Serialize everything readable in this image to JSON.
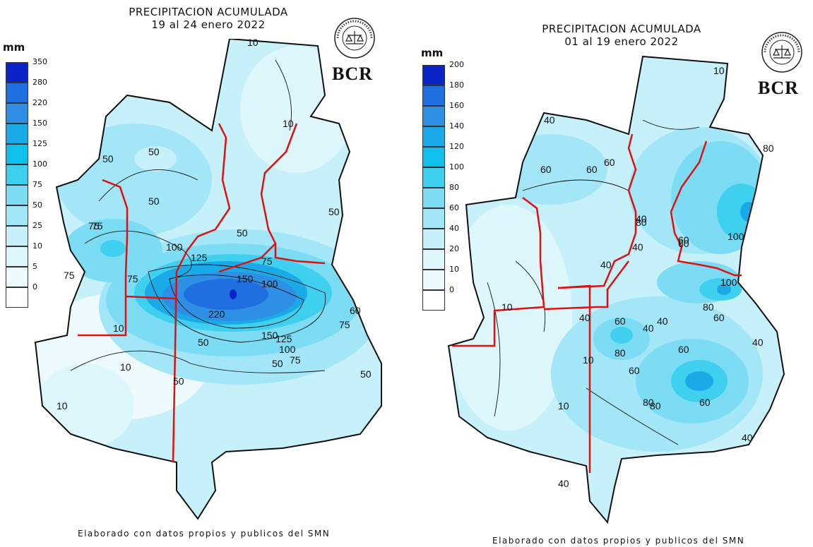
{
  "maps": [
    {
      "title_line1": "PRECIPITACION ACUMULADA",
      "title_line2": "19 al 24 enero 2022",
      "legend_unit": "mm",
      "legend": [
        {
          "label": "350",
          "color": "#0a24c8"
        },
        {
          "label": "280",
          "color": "#1f6fe0"
        },
        {
          "label": "220",
          "color": "#2f8fe4"
        },
        {
          "label": "150",
          "color": "#1aaae8"
        },
        {
          "label": "125",
          "color": "#10c0ec"
        },
        {
          "label": "100",
          "color": "#3fd0f0"
        },
        {
          "label": "75",
          "color": "#7cdcf4"
        },
        {
          "label": "50",
          "color": "#a2e6f7"
        },
        {
          "label": "25",
          "color": "#c6f0fa"
        },
        {
          "label": "10",
          "color": "#def7fc"
        },
        {
          "label": "5",
          "color": "#eefbfe"
        },
        {
          "label": "0",
          "color": "#ffffff"
        }
      ],
      "brand": "BCR",
      "seal_text": "BOLSA DE COMERCIO DE ROSARIO",
      "contour_labels": [
        "10",
        "50",
        "50",
        "75",
        "50",
        "100",
        "125",
        "75",
        "75",
        "150",
        "100",
        "220",
        "150",
        "125",
        "100",
        "75",
        "50",
        "75",
        "50",
        "10",
        "10",
        "10",
        "50",
        "50",
        "50",
        "10",
        "75",
        "60",
        "75",
        "50"
      ],
      "footer": "Elaborado con datos propios y publicos del SMN"
    },
    {
      "title_line1": "PRECIPITACION ACUMULADA",
      "title_line2": "01 al 19 enero 2022",
      "legend_unit": "mm",
      "legend": [
        {
          "label": "200",
          "color": "#0a24c8"
        },
        {
          "label": "180",
          "color": "#1f6fe0"
        },
        {
          "label": "160",
          "color": "#2f8fe4"
        },
        {
          "label": "140",
          "color": "#1aaae8"
        },
        {
          "label": "120",
          "color": "#10c0ec"
        },
        {
          "label": "100",
          "color": "#3fd0f0"
        },
        {
          "label": "80",
          "color": "#7cdcf4"
        },
        {
          "label": "60",
          "color": "#a2e6f7"
        },
        {
          "label": "40",
          "color": "#c6f0fa"
        },
        {
          "label": "20",
          "color": "#def7fc"
        },
        {
          "label": "10",
          "color": "#eefbfe"
        },
        {
          "label": "0",
          "color": "#ffffff"
        }
      ],
      "brand": "BCR",
      "seal_text": "BOLSA DE COMERCIO DE ROSARIO",
      "contour_labels": [
        "10",
        "40",
        "60",
        "60",
        "60",
        "80",
        "80",
        "100",
        "40",
        "60",
        "40",
        "10",
        "10",
        "40",
        "40",
        "60",
        "80",
        "100",
        "80",
        "60",
        "40",
        "80",
        "60",
        "40",
        "60",
        "60",
        "80",
        "40",
        "60",
        "40",
        "10",
        "40"
      ],
      "footer": "Elaborado con datos propios y publicos del SMN"
    }
  ],
  "colors": {
    "border": "#e01010",
    "contour": "#111111"
  }
}
